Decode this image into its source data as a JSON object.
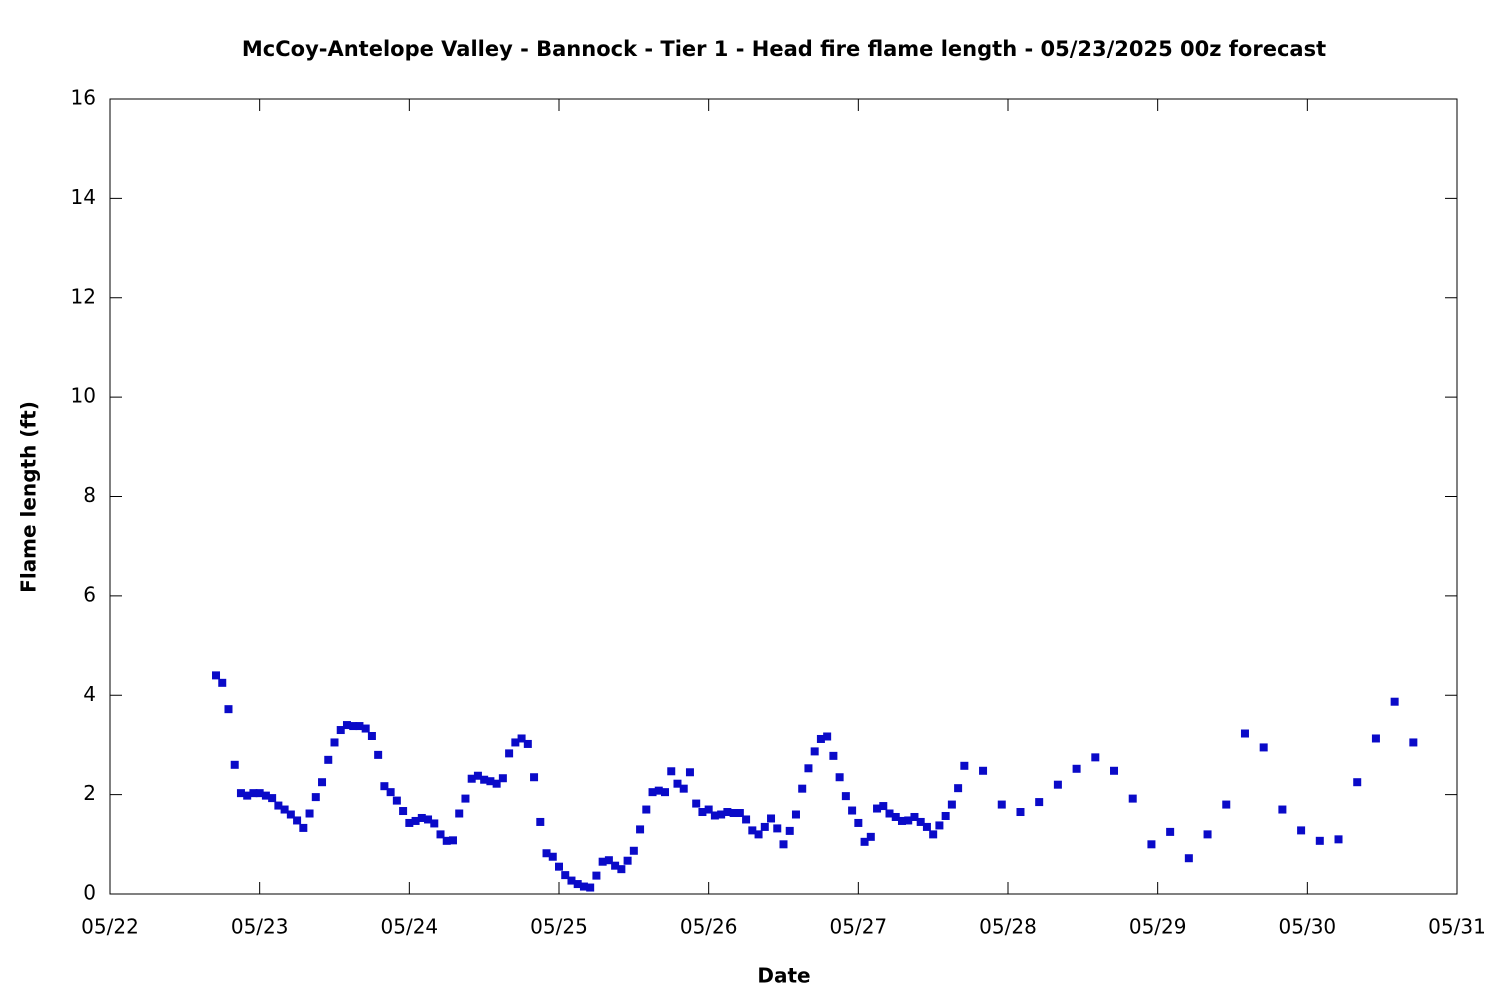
{
  "chart_data": {
    "type": "scatter",
    "title": "McCoy-Antelope Valley - Bannock - Tier 1 - Head fire flame length - 05/23/2025 00z forecast",
    "x_label": "Date",
    "y_label": "Flame length (ft)",
    "color": "#0a0ac8",
    "xlim": [
      "05/22",
      "05/31"
    ],
    "xticks": [
      "05/22",
      "05/23",
      "05/24",
      "05/25",
      "05/26",
      "05/27",
      "05/28",
      "05/29",
      "05/30",
      "05/31"
    ],
    "ylim": [
      0,
      16
    ],
    "yticks": [
      0,
      2,
      4,
      6,
      8,
      10,
      12,
      14,
      16
    ],
    "x": [
      "05/22 17:00",
      "05/22 18:00",
      "05/22 19:00",
      "05/22 20:00",
      "05/22 21:00",
      "05/22 22:00",
      "05/22 23:00",
      "05/23 00:00",
      "05/23 01:00",
      "05/23 02:00",
      "05/23 03:00",
      "05/23 04:00",
      "05/23 05:00",
      "05/23 06:00",
      "05/23 07:00",
      "05/23 08:00",
      "05/23 09:00",
      "05/23 10:00",
      "05/23 11:00",
      "05/23 12:00",
      "05/23 13:00",
      "05/23 14:00",
      "05/23 15:00",
      "05/23 16:00",
      "05/23 17:00",
      "05/23 18:00",
      "05/23 19:00",
      "05/23 20:00",
      "05/23 21:00",
      "05/23 22:00",
      "05/23 23:00",
      "05/24 00:00",
      "05/24 01:00",
      "05/24 02:00",
      "05/24 03:00",
      "05/24 04:00",
      "05/24 05:00",
      "05/24 06:00",
      "05/24 07:00",
      "05/24 08:00",
      "05/24 09:00",
      "05/24 10:00",
      "05/24 11:00",
      "05/24 12:00",
      "05/24 13:00",
      "05/24 14:00",
      "05/24 15:00",
      "05/24 16:00",
      "05/24 17:00",
      "05/24 18:00",
      "05/24 19:00",
      "05/24 20:00",
      "05/24 21:00",
      "05/24 22:00",
      "05/24 23:00",
      "05/25 00:00",
      "05/25 01:00",
      "05/25 02:00",
      "05/25 03:00",
      "05/25 04:00",
      "05/25 05:00",
      "05/25 06:00",
      "05/25 07:00",
      "05/25 08:00",
      "05/25 09:00",
      "05/25 10:00",
      "05/25 11:00",
      "05/25 12:00",
      "05/25 13:00",
      "05/25 14:00",
      "05/25 15:00",
      "05/25 16:00",
      "05/25 17:00",
      "05/25 18:00",
      "05/25 19:00",
      "05/25 20:00",
      "05/25 21:00",
      "05/25 22:00",
      "05/25 23:00",
      "05/26 00:00",
      "05/26 01:00",
      "05/26 02:00",
      "05/26 03:00",
      "05/26 04:00",
      "05/26 05:00",
      "05/26 06:00",
      "05/26 07:00",
      "05/26 08:00",
      "05/26 09:00",
      "05/26 10:00",
      "05/26 11:00",
      "05/26 12:00",
      "05/26 13:00",
      "05/26 14:00",
      "05/26 15:00",
      "05/26 16:00",
      "05/26 17:00",
      "05/26 18:00",
      "05/26 19:00",
      "05/26 20:00",
      "05/26 21:00",
      "05/26 22:00",
      "05/26 23:00",
      "05/27 00:00",
      "05/27 01:00",
      "05/27 02:00",
      "05/27 03:00",
      "05/27 04:00",
      "05/27 05:00",
      "05/27 06:00",
      "05/27 07:00",
      "05/27 08:00",
      "05/27 09:00",
      "05/27 10:00",
      "05/27 11:00",
      "05/27 12:00",
      "05/27 13:00",
      "05/27 14:00",
      "05/27 15:00",
      "05/27 16:00",
      "05/27 17:00",
      "05/27 20:00",
      "05/27 23:00",
      "05/28 02:00",
      "05/28 05:00",
      "05/28 08:00",
      "05/28 11:00",
      "05/28 14:00",
      "05/28 17:00",
      "05/28 20:00",
      "05/28 23:00",
      "05/29 02:00",
      "05/29 05:00",
      "05/29 08:00",
      "05/29 11:00",
      "05/29 14:00",
      "05/29 17:00",
      "05/29 20:00",
      "05/29 23:00",
      "05/30 02:00",
      "05/30 05:00",
      "05/30 08:00",
      "05/30 11:00",
      "05/30 14:00",
      "05/30 17:00"
    ],
    "values": [
      4.4,
      4.25,
      3.72,
      2.6,
      2.03,
      1.98,
      2.03,
      2.03,
      1.98,
      1.93,
      1.78,
      1.7,
      1.6,
      1.48,
      1.33,
      1.62,
      1.95,
      2.25,
      2.7,
      3.05,
      3.3,
      3.4,
      3.38,
      3.38,
      3.33,
      3.18,
      2.8,
      2.17,
      2.05,
      1.88,
      1.67,
      1.43,
      1.47,
      1.53,
      1.5,
      1.42,
      1.2,
      1.07,
      1.08,
      1.62,
      1.92,
      2.32,
      2.38,
      2.3,
      2.27,
      2.22,
      2.33,
      2.83,
      3.05,
      3.13,
      3.02,
      2.35,
      1.45,
      0.82,
      0.75,
      0.55,
      0.38,
      0.27,
      0.2,
      0.15,
      0.13,
      0.37,
      0.65,
      0.68,
      0.57,
      0.5,
      0.67,
      0.87,
      1.3,
      1.7,
      2.05,
      2.08,
      2.05,
      2.47,
      2.22,
      2.12,
      2.45,
      1.82,
      1.65,
      1.7,
      1.58,
      1.6,
      1.65,
      1.63,
      1.63,
      1.5,
      1.28,
      1.2,
      1.35,
      1.52,
      1.32,
      1.0,
      1.27,
      1.6,
      2.12,
      2.53,
      2.87,
      3.12,
      3.17,
      2.78,
      2.35,
      1.97,
      1.68,
      1.43,
      1.05,
      1.15,
      1.72,
      1.77,
      1.62,
      1.55,
      1.47,
      1.48,
      1.55,
      1.45,
      1.35,
      1.2,
      1.38,
      1.57,
      1.8,
      2.13,
      2.58,
      2.48,
      1.8,
      1.65,
      1.85,
      2.2,
      2.52,
      2.75,
      2.48,
      1.92,
      1.0,
      1.25,
      0.72,
      1.2,
      1.8,
      3.23,
      2.95,
      1.7,
      1.28,
      1.07,
      1.1,
      2.25,
      3.13,
      3.87,
      3.05
    ]
  }
}
